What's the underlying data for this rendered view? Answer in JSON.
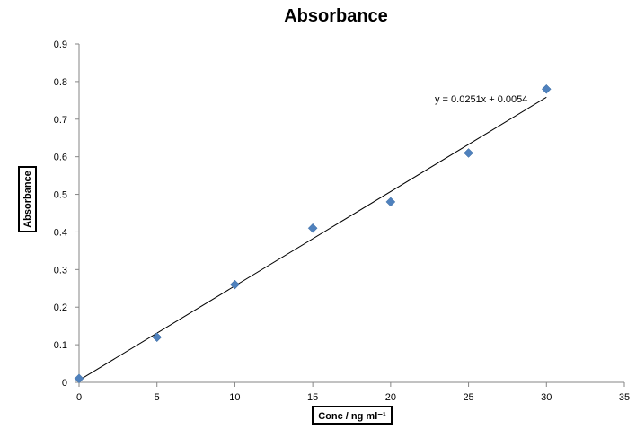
{
  "chart_data": {
    "type": "scatter",
    "title": "Absorbance",
    "xlabel": "Conc / ng ml⁻¹",
    "ylabel": "Absorbance",
    "xlim": [
      0,
      35
    ],
    "ylim": [
      0,
      0.9
    ],
    "xticks": [
      "0",
      "5",
      "10",
      "15",
      "20",
      "25",
      "30",
      "35"
    ],
    "yticks": [
      "0",
      "0.1",
      "0.2",
      "0.3",
      "0.4",
      "0.5",
      "0.6",
      "0.7",
      "0.8",
      "0.9"
    ],
    "grid": false,
    "marker_color": "#4F81BD",
    "series": [
      {
        "x": [
          0,
          5,
          10,
          15,
          20,
          25,
          30
        ],
        "y": [
          0.01,
          0.12,
          0.26,
          0.41,
          0.48,
          0.61,
          0.78
        ]
      }
    ],
    "trendline": {
      "type": "linear",
      "slope": 0.0251,
      "intercept": 0.0054,
      "x_range": [
        0,
        30
      ],
      "equation_label": "y = 0.0251x + 0.0054"
    }
  }
}
